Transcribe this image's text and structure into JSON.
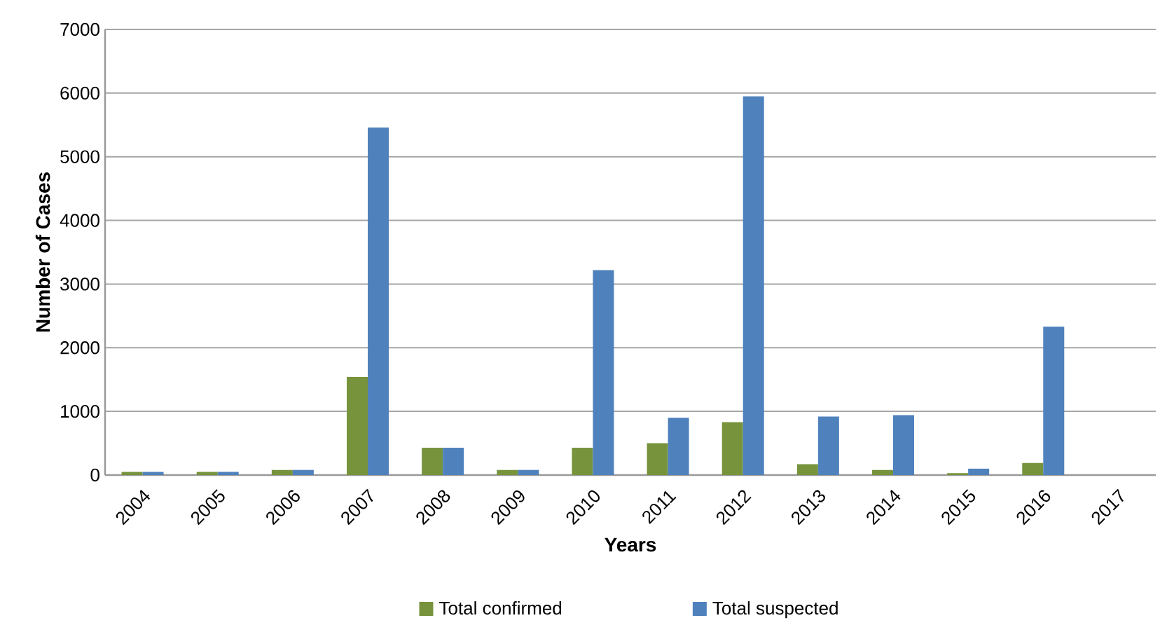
{
  "chart_data": {
    "type": "bar",
    "xlabel": "Years",
    "ylabel": "Number of Cases",
    "categories": [
      "2004",
      "2005",
      "2006",
      "2007",
      "2008",
      "2009",
      "2010",
      "2011",
      "2012",
      "2013",
      "2014",
      "2015",
      "2016",
      "2017"
    ],
    "series": [
      {
        "name": "Total confirmed",
        "color": "#77933c",
        "values": [
          50,
          50,
          80,
          1540,
          430,
          80,
          430,
          500,
          830,
          170,
          80,
          30,
          190,
          0
        ]
      },
      {
        "name": "Total suspected",
        "color": "#4f81bd",
        "values": [
          50,
          50,
          80,
          5460,
          430,
          80,
          3220,
          900,
          5950,
          920,
          940,
          100,
          2330,
          0
        ]
      }
    ],
    "ylim": [
      0,
      7000
    ],
    "yticks": [
      0,
      1000,
      2000,
      3000,
      4000,
      5000,
      6000,
      7000
    ],
    "grid": "y",
    "legend": "bottom"
  }
}
